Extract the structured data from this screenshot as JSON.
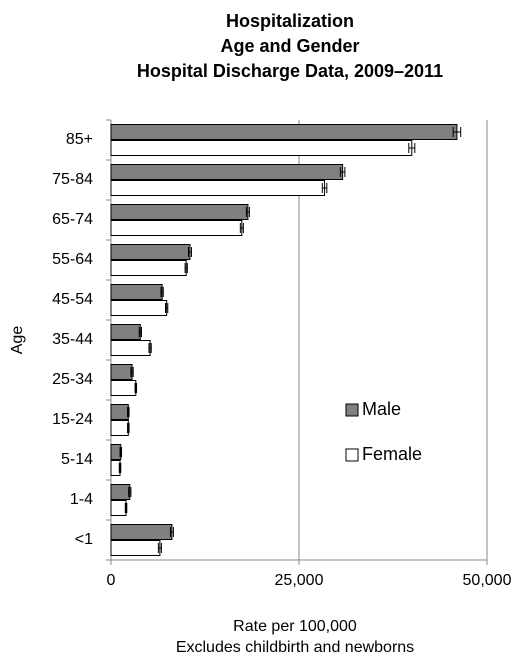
{
  "chart_data": {
    "type": "bar",
    "orientation": "horizontal",
    "title": [
      "Hospitalization",
      "Age and Gender",
      "Hospital Discharge Data, 2009–2011"
    ],
    "x_label": "Rate per 100,000",
    "note": "Excludes childbirth and newborns",
    "y_label": "Age",
    "categories": [
      "85+",
      "75-84",
      "65-74",
      "55-64",
      "45-54",
      "35-44",
      "25-34",
      "15-24",
      "5-14",
      "1-4",
      "<1"
    ],
    "series": [
      {
        "name": "Male",
        "color": "#808080",
        "values": [
          46000,
          30800,
          18200,
          10500,
          6800,
          3900,
          2800,
          2300,
          1300,
          2500,
          8100
        ],
        "errors": [
          500,
          300,
          200,
          200,
          150,
          150,
          150,
          100,
          100,
          150,
          200
        ]
      },
      {
        "name": "Female",
        "color": "#ffffff",
        "values": [
          40000,
          28400,
          17400,
          10000,
          7400,
          5200,
          3300,
          2300,
          1200,
          2000,
          6500
        ],
        "errors": [
          400,
          300,
          200,
          150,
          150,
          150,
          100,
          100,
          100,
          100,
          200
        ]
      }
    ],
    "xlim": [
      0,
      50000
    ],
    "xticks": [
      0,
      {
        "value": 25000,
        "label": "25,000"
      },
      {
        "value": 50000,
        "label": "50,000"
      }
    ],
    "grid": true,
    "legend": "right"
  }
}
